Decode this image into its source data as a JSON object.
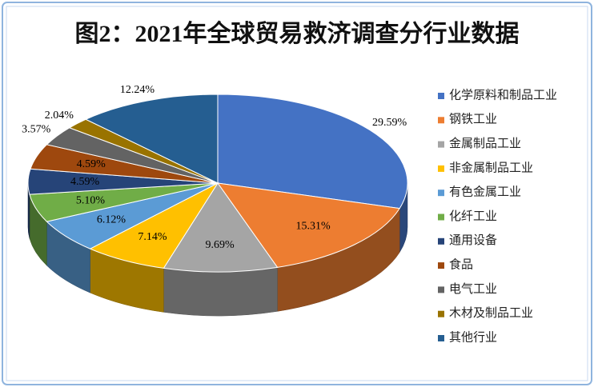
{
  "chart_data": {
    "type": "pie3d",
    "title": "图2：2021年全球贸易救济调查分行业数据",
    "categories": [
      "化学原料和制品工业",
      "钢铁工业",
      "金属制品工业",
      "非金属制品工业",
      "有色金属工业",
      "化纤工业",
      "通用设备",
      "食品",
      "电气工业",
      "木材及制品工业",
      "其他行业"
    ],
    "values": [
      29.59,
      15.31,
      9.69,
      7.14,
      6.12,
      5.1,
      4.59,
      4.59,
      3.57,
      2.04,
      12.24
    ],
    "value_labels": [
      "29.59%",
      "15.31%",
      "9.69%",
      "7.14%",
      "6.12%",
      "5.10%",
      "4.59%",
      "4.59%",
      "3.57%",
      "2.04%",
      "12.24%"
    ],
    "colors": [
      "#4472c4",
      "#ed7d31",
      "#a5a5a5",
      "#ffc000",
      "#5b9bd5",
      "#70ad47",
      "#264478",
      "#9e480e",
      "#636363",
      "#997300",
      "#255e91"
    ],
    "legend": "right"
  }
}
